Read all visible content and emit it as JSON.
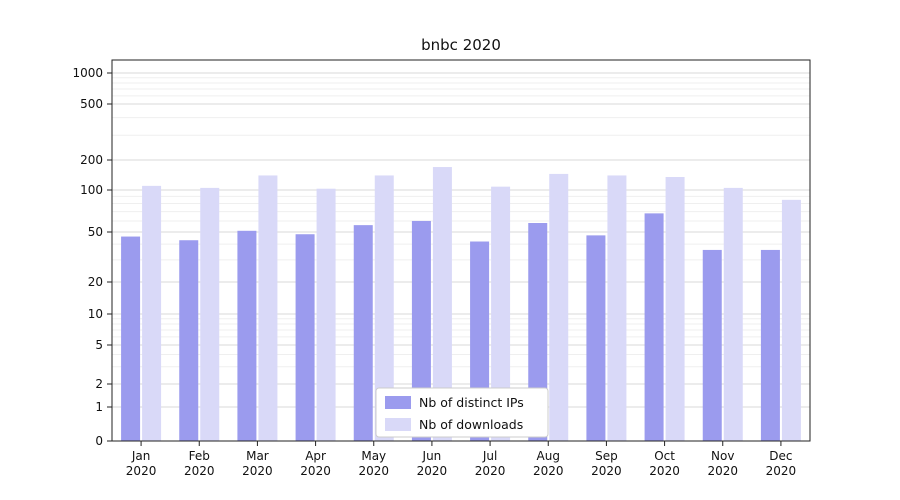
{
  "chart_data": {
    "type": "bar",
    "title": "bnbc 2020",
    "categories": [
      "Jan 2020",
      "Feb 2020",
      "Mar 2020",
      "Apr 2020",
      "May 2020",
      "Jun 2020",
      "Jul 2020",
      "Aug 2020",
      "Sep 2020",
      "Oct 2020",
      "Nov 2020",
      "Dec 2020"
    ],
    "series": [
      {
        "name": "Nb of distinct IPs",
        "color": "#9b9bee",
        "values": [
          46,
          43,
          51,
          48,
          56,
          60,
          42,
          58,
          47,
          68,
          36,
          36
        ]
      },
      {
        "name": "Nb of downloads",
        "color": "#d9d9f8",
        "values": [
          110,
          105,
          140,
          103,
          140,
          170,
          108,
          145,
          140,
          135,
          105,
          85
        ]
      }
    ],
    "xlabel": "",
    "ylabel": "",
    "yscale": "symlog",
    "yticks": [
      0,
      1,
      2,
      5,
      10,
      20,
      50,
      100,
      200,
      500,
      1000
    ],
    "ylim": [
      0,
      1400
    ],
    "grid": true,
    "legend_position": "lower center",
    "colors": {
      "major_grid": "#d9d9d9",
      "minor_grid": "#efefef",
      "spine": "#222222",
      "legend_border": "#cccccc",
      "legend_bg": "#ffffff"
    }
  }
}
